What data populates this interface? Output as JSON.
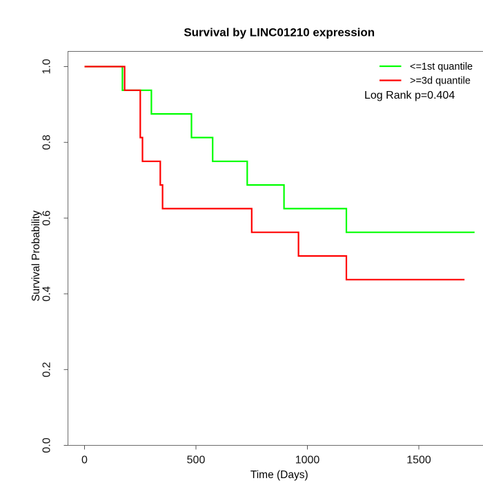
{
  "chart_data": {
    "type": "line",
    "variant": "kaplan-meier-step",
    "title": "Survival by LINC01210 expression",
    "xlabel": "Time (Days)",
    "ylabel": "Survival Probability",
    "x_ticks": [
      0,
      500,
      1000,
      1500
    ],
    "x_tick_labels": [
      "0",
      "500",
      "1000",
      "1500"
    ],
    "y_ticks": [
      0.0,
      0.2,
      0.4,
      0.6,
      0.8,
      1.0
    ],
    "y_tick_labels": [
      "0.0",
      "0.2",
      "0.4",
      "0.6",
      "0.8",
      "1.0"
    ],
    "xlim": [
      0,
      1820
    ],
    "ylim": [
      0.0,
      1.0
    ],
    "grid": false,
    "legend_position": "top-right",
    "annotation": "Log Rank p=0.404",
    "p_value": 0.404,
    "axis_color": "#6b6b6b",
    "series": [
      {
        "name": "<=1st quantile",
        "color": "#00ff00",
        "start": [
          0,
          1.0
        ],
        "drops": [
          [
            170,
            0.9375
          ],
          [
            300,
            0.875
          ],
          [
            480,
            0.8125
          ],
          [
            575,
            0.75
          ],
          [
            730,
            0.6875
          ],
          [
            895,
            0.625
          ],
          [
            1175,
            0.5625
          ]
        ],
        "end_time": 1750,
        "final_probability": 0.5625
      },
      {
        "name": ">=3d quantile",
        "color": "#ff0000",
        "start": [
          0,
          1.0
        ],
        "drops": [
          [
            180,
            0.9375
          ],
          [
            250,
            0.8125
          ],
          [
            260,
            0.75
          ],
          [
            340,
            0.6875
          ],
          [
            350,
            0.625
          ],
          [
            750,
            0.5625
          ],
          [
            960,
            0.5
          ],
          [
            1175,
            0.4375
          ]
        ],
        "end_time": 1705,
        "final_probability": 0.4375
      }
    ]
  }
}
